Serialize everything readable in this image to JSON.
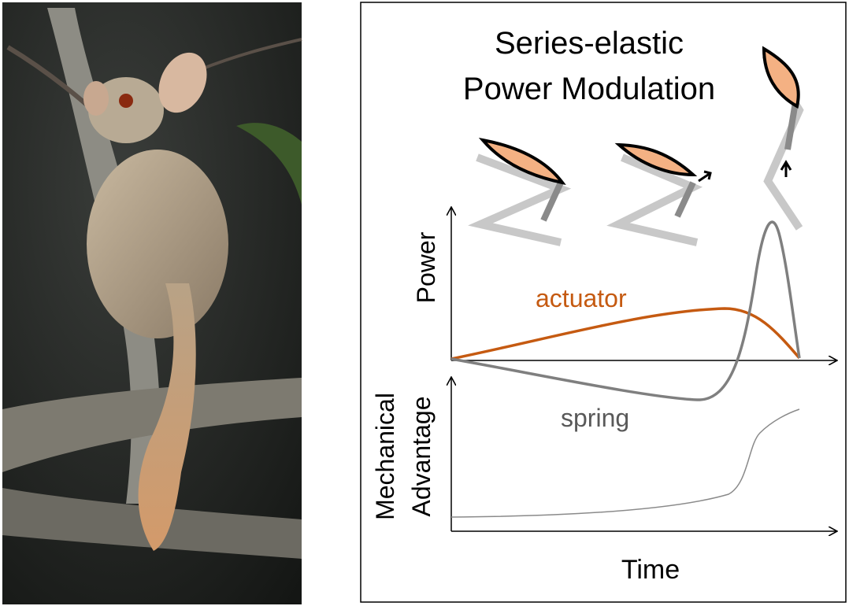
{
  "diagram": {
    "title_lines": [
      "Series-elastic",
      "Power Modulation"
    ],
    "power_axis_label": "Power",
    "actuator_label": "actuator",
    "spring_label": "spring",
    "ma_axis_label_lines": [
      "Mechanical",
      "Advantage"
    ],
    "time_axis_label": "Time"
  }
}
